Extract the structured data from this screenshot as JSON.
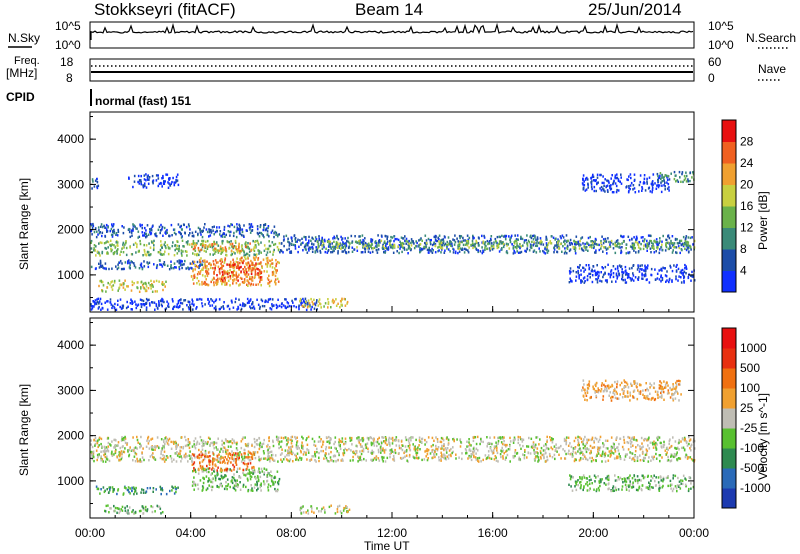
{
  "header": {
    "station": "Stokkseyri (fitACF)",
    "beam": "Beam 14",
    "date": "25/Jun/2014"
  },
  "panels": {
    "nsky": {
      "label": "N.Sky",
      "left_ticks": [
        "10^5",
        "10^0"
      ],
      "right_ticks": [
        "10^5",
        "10^0"
      ],
      "right_label": "N.Search"
    },
    "freq": {
      "label_line1": "Freq.",
      "label_line2": "[MHz]",
      "left_ticks": [
        "18",
        "8"
      ],
      "right_ticks": [
        "60",
        "0"
      ],
      "right_label": "Nave"
    },
    "cpid": {
      "label": "CPID",
      "value": "normal (fast) 151"
    }
  },
  "chart_data": [
    {
      "type": "heatmap",
      "title": "",
      "xlabel": "",
      "ylabel": "Slant Range [km]",
      "x": [
        "00:00",
        "04:00",
        "08:00",
        "12:00",
        "16:00",
        "20:00",
        "00:00"
      ],
      "y_ticks": [
        1000,
        2000,
        3000,
        4000
      ],
      "ylim": [
        180,
        4600
      ],
      "colorbar": {
        "label": "Power [dB]",
        "ticks": [
          "4",
          "8",
          "12",
          "16",
          "20",
          "24",
          "28"
        ],
        "colors": [
          "#1030ff",
          "#1c4da8",
          "#3a8a78",
          "#6ab24a",
          "#c8d040",
          "#f0a030",
          "#f06020",
          "#e81010"
        ]
      },
      "regions": [
        {
          "t0": 0.0,
          "t1": 0.3,
          "r0": 2900,
          "r1": 3200,
          "level": 1
        },
        {
          "t0": 1.5,
          "t1": 3.5,
          "r0": 2950,
          "r1": 3250,
          "level": 0
        },
        {
          "t0": 0.0,
          "t1": 7.5,
          "r0": 1850,
          "r1": 2150,
          "level": 1
        },
        {
          "t0": 0.0,
          "t1": 7.5,
          "r0": 1450,
          "r1": 1780,
          "level": 3
        },
        {
          "t0": 4.0,
          "t1": 6.5,
          "r0": 1550,
          "r1": 1720,
          "level": 5
        },
        {
          "t0": 0.0,
          "t1": 4.5,
          "r0": 1150,
          "r1": 1350,
          "level": 1
        },
        {
          "t0": 4.0,
          "t1": 7.5,
          "r0": 780,
          "r1": 1420,
          "level": 5
        },
        {
          "t0": 4.8,
          "t1": 6.8,
          "r0": 900,
          "r1": 1300,
          "level": 6
        },
        {
          "t0": 0.3,
          "t1": 3.0,
          "r0": 650,
          "r1": 900,
          "level": 4
        },
        {
          "t0": 0.0,
          "t1": 9.0,
          "r0": 250,
          "r1": 500,
          "level": 0
        },
        {
          "t0": 8.3,
          "t1": 10.3,
          "r0": 300,
          "r1": 500,
          "level": 4
        },
        {
          "t0": 7.5,
          "t1": 24.0,
          "r0": 1500,
          "r1": 1900,
          "level": 1
        },
        {
          "t0": 9.0,
          "t1": 24.0,
          "r0": 1600,
          "r1": 1780,
          "level": 3
        },
        {
          "t0": 19.5,
          "t1": 23.0,
          "r0": 2850,
          "r1": 3250,
          "level": 0
        },
        {
          "t0": 22.5,
          "t1": 24.0,
          "r0": 3050,
          "r1": 3300,
          "level": 2
        },
        {
          "t0": 19.0,
          "t1": 24.0,
          "r0": 850,
          "r1": 1250,
          "level": 0
        }
      ]
    },
    {
      "type": "heatmap",
      "title": "",
      "xlabel": "Time UT",
      "ylabel": "Slant Range [km]",
      "x": [
        "00:00",
        "04:00",
        "08:00",
        "12:00",
        "16:00",
        "20:00",
        "00:00"
      ],
      "y_ticks": [
        1000,
        2000,
        3000,
        4000
      ],
      "ylim": [
        180,
        4600
      ],
      "colorbar": {
        "label": "Velocity [m s^-1]",
        "ticks": [
          "1000",
          "500",
          "100",
          "25",
          "-25",
          "-100",
          "-500",
          "-1000"
        ],
        "colors": [
          "#1c3ab0",
          "#2a6ab8",
          "#2e8a50",
          "#58c030",
          "#bfbdb4",
          "#f0a030",
          "#f07010",
          "#e83010",
          "#e81010"
        ]
      },
      "regions": [
        {
          "t0": 0.0,
          "t1": 24.0,
          "r0": 1450,
          "r1": 2000,
          "level": 4
        },
        {
          "t0": 4.0,
          "t1": 7.5,
          "r0": 800,
          "r1": 1300,
          "level": 3
        },
        {
          "t0": 4.0,
          "t1": 6.5,
          "r0": 1250,
          "r1": 1650,
          "level": 6
        },
        {
          "t0": 0.2,
          "t1": 3.5,
          "r0": 720,
          "r1": 900,
          "level": 2
        },
        {
          "t0": 0.5,
          "t1": 3.0,
          "r0": 300,
          "r1": 480,
          "level": 3
        },
        {
          "t0": 8.3,
          "t1": 10.3,
          "r0": 300,
          "r1": 480,
          "level": 4
        },
        {
          "t0": 19.0,
          "t1": 24.0,
          "r0": 800,
          "r1": 1150,
          "level": 3
        },
        {
          "t0": 19.5,
          "t1": 23.5,
          "r0": 2800,
          "r1": 3250,
          "level": 5
        }
      ]
    }
  ]
}
